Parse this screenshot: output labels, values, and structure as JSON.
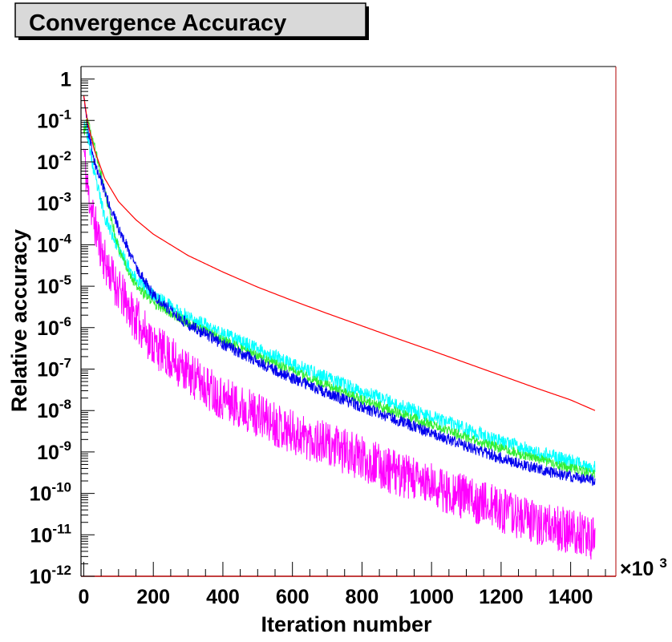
{
  "chart_data": {
    "type": "line",
    "title": "Convergence Accuracy",
    "xlabel": "Iteration number",
    "ylabel": "Relative accuracy",
    "x_multiplier_label": "×10",
    "x_multiplier_exponent": "3",
    "xlim": [
      -8,
      1530
    ],
    "ylim": [
      1e-12,
      2
    ],
    "y_scale": "log",
    "grid": false,
    "x_ticks": [
      {
        "label": "0",
        "value": 0
      },
      {
        "label": "200",
        "value": 200
      },
      {
        "label": "400",
        "value": 400
      },
      {
        "label": "600",
        "value": 600
      },
      {
        "label": "800",
        "value": 800
      },
      {
        "label": "1000",
        "value": 1000
      },
      {
        "label": "1200",
        "value": 1200
      },
      {
        "label": "1400",
        "value": 1400
      }
    ],
    "y_ticks": [
      {
        "base": "1",
        "exp": "",
        "exponent_value": 0
      },
      {
        "base": "10",
        "exp": "-1",
        "exponent_value": -1
      },
      {
        "base": "10",
        "exp": "-2",
        "exponent_value": -2
      },
      {
        "base": "10",
        "exp": "-3",
        "exponent_value": -3
      },
      {
        "base": "10",
        "exp": "-4",
        "exponent_value": -4
      },
      {
        "base": "10",
        "exp": "-5",
        "exponent_value": -5
      },
      {
        "base": "10",
        "exp": "-6",
        "exponent_value": -6
      },
      {
        "base": "10",
        "exp": "-7",
        "exponent_value": -7
      },
      {
        "base": "10",
        "exp": "-8",
        "exponent_value": -8
      },
      {
        "base": "10",
        "exp": "-9",
        "exponent_value": -9
      },
      {
        "base": "10",
        "exp": "-10",
        "exponent_value": -10
      },
      {
        "base": "10",
        "exp": "-11",
        "exponent_value": -11
      },
      {
        "base": "10",
        "exp": "-12",
        "exponent_value": -12
      }
    ],
    "series": [
      {
        "color": "#ff00ff",
        "noise_decades": 1.1,
        "noise_seed": 11,
        "x": [
          0,
          10,
          30,
          60,
          100,
          150,
          200,
          300,
          400,
          500,
          600,
          700,
          800,
          900,
          1000,
          1100,
          1200,
          1300,
          1400,
          1470
        ],
        "y": [
          0.02,
          0.0025,
          0.00035,
          4e-05,
          8e-06,
          1.6e-06,
          4e-07,
          8e-08,
          2e-08,
          8e-09,
          3e-09,
          1.5e-09,
          7e-10,
          3e-10,
          1.5e-10,
          8e-11,
          4e-11,
          2e-11,
          1.2e-11,
          8e-12
        ]
      },
      {
        "color": "#00ffff",
        "noise_decades": 0.35,
        "noise_seed": 23,
        "x": [
          0,
          10,
          30,
          60,
          100,
          150,
          200,
          300,
          400,
          500,
          600,
          700,
          800,
          900,
          1000,
          1100,
          1200,
          1300,
          1400,
          1470
        ],
        "y": [
          0.1,
          0.05,
          0.005,
          0.0005,
          8e-05,
          1.5e-05,
          6e-06,
          1.8e-06,
          7e-07,
          3e-07,
          1.3e-07,
          6e-08,
          2.8e-08,
          1.4e-08,
          7e-09,
          3.5e-09,
          1.8e-09,
          1e-09,
          6e-10,
          4.5e-10
        ]
      },
      {
        "color": "#33ee33",
        "noise_decades": 0.25,
        "noise_seed": 37,
        "x": [
          0,
          10,
          30,
          60,
          100,
          150,
          200,
          300,
          400,
          500,
          600,
          700,
          800,
          900,
          1000,
          1100,
          1200,
          1300,
          1400,
          1470
        ],
        "y": [
          0.05,
          0.1,
          0.025,
          0.002,
          8e-05,
          1e-05,
          4e-06,
          1.3e-06,
          5e-07,
          2e-07,
          9e-08,
          4e-08,
          1.8e-08,
          9e-09,
          4.5e-09,
          2.2e-09,
          1.2e-09,
          7e-10,
          4e-10,
          3e-10
        ]
      },
      {
        "color": "#0000ee",
        "noise_decades": 0.28,
        "noise_seed": 51,
        "x": [
          0,
          10,
          30,
          60,
          100,
          150,
          200,
          300,
          400,
          500,
          600,
          700,
          800,
          900,
          1000,
          1100,
          1200,
          1300,
          1400,
          1470
        ],
        "y": [
          0.5,
          0.08,
          0.01,
          0.002,
          0.00025,
          3e-05,
          6e-06,
          1.2e-06,
          4e-07,
          1.5e-07,
          6e-08,
          2.7e-08,
          1.2e-08,
          6e-09,
          2.8e-09,
          1.4e-09,
          7e-10,
          4e-10,
          2.5e-10,
          2e-10
        ]
      },
      {
        "color": "#ff0000",
        "noise_decades": 0,
        "noise_seed": 0,
        "x": [
          0,
          10,
          30,
          60,
          100,
          150,
          200,
          300,
          400,
          500,
          600,
          700,
          800,
          900,
          1000,
          1100,
          1200,
          1300,
          1400,
          1470
        ],
        "y": [
          0.4,
          0.1,
          0.02,
          0.004,
          0.0011,
          0.0004,
          0.00018,
          5.5e-05,
          2.2e-05,
          9.5e-06,
          4.5e-06,
          2.2e-06,
          1.1e-06,
          5.5e-07,
          2.8e-07,
          1.4e-07,
          7e-08,
          3.5e-08,
          1.8e-08,
          1e-08
        ]
      }
    ]
  }
}
